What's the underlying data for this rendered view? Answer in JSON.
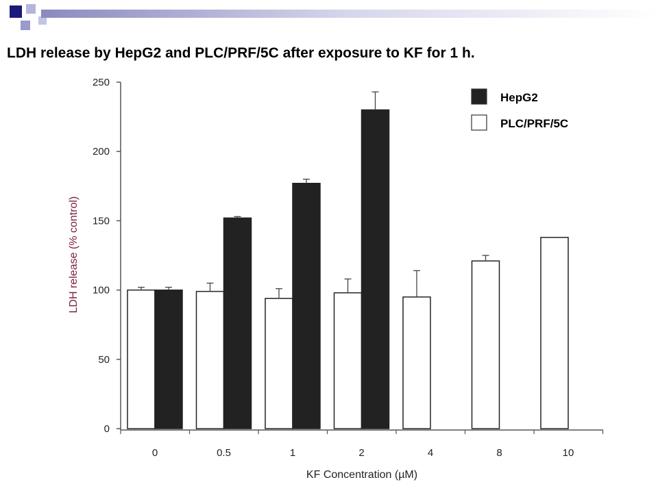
{
  "slide": {
    "title": "LDH release by HepG2 and PLC/PRF/5C after exposure to KF for 1 h."
  },
  "colors": {
    "deco_dark": "#1a1a7a",
    "deco_light": "#9a9acc",
    "hepg2_fill": "#222222",
    "plc_fill": "#ffffff",
    "ylabel_color": "#7a1f3a"
  },
  "chart_data": {
    "type": "bar",
    "title": "LDH release by HepG2 and PLC/PRF/5C after exposure to KF for 1 h.",
    "xlabel": "KF Concentration (µM)",
    "ylabel": "LDH release (% control)",
    "categories": [
      "0",
      "0.5",
      "1",
      "2",
      "4",
      "8",
      "10"
    ],
    "ylim": [
      0,
      250
    ],
    "yticks": [
      0,
      50,
      100,
      150,
      200,
      250
    ],
    "legend_position": "top-right",
    "grid": false,
    "series": [
      {
        "name": "HepG2",
        "color": "#222222",
        "values": [
          100,
          152,
          177,
          230,
          null,
          null,
          null
        ],
        "errors": [
          2,
          1,
          3,
          13,
          null,
          null,
          null
        ]
      },
      {
        "name": "PLC/PRF/5C",
        "color": "#ffffff",
        "values": [
          100,
          99,
          94,
          98,
          95,
          121,
          138
        ],
        "errors": [
          2,
          6,
          7,
          10,
          19,
          4,
          0
        ]
      }
    ]
  }
}
